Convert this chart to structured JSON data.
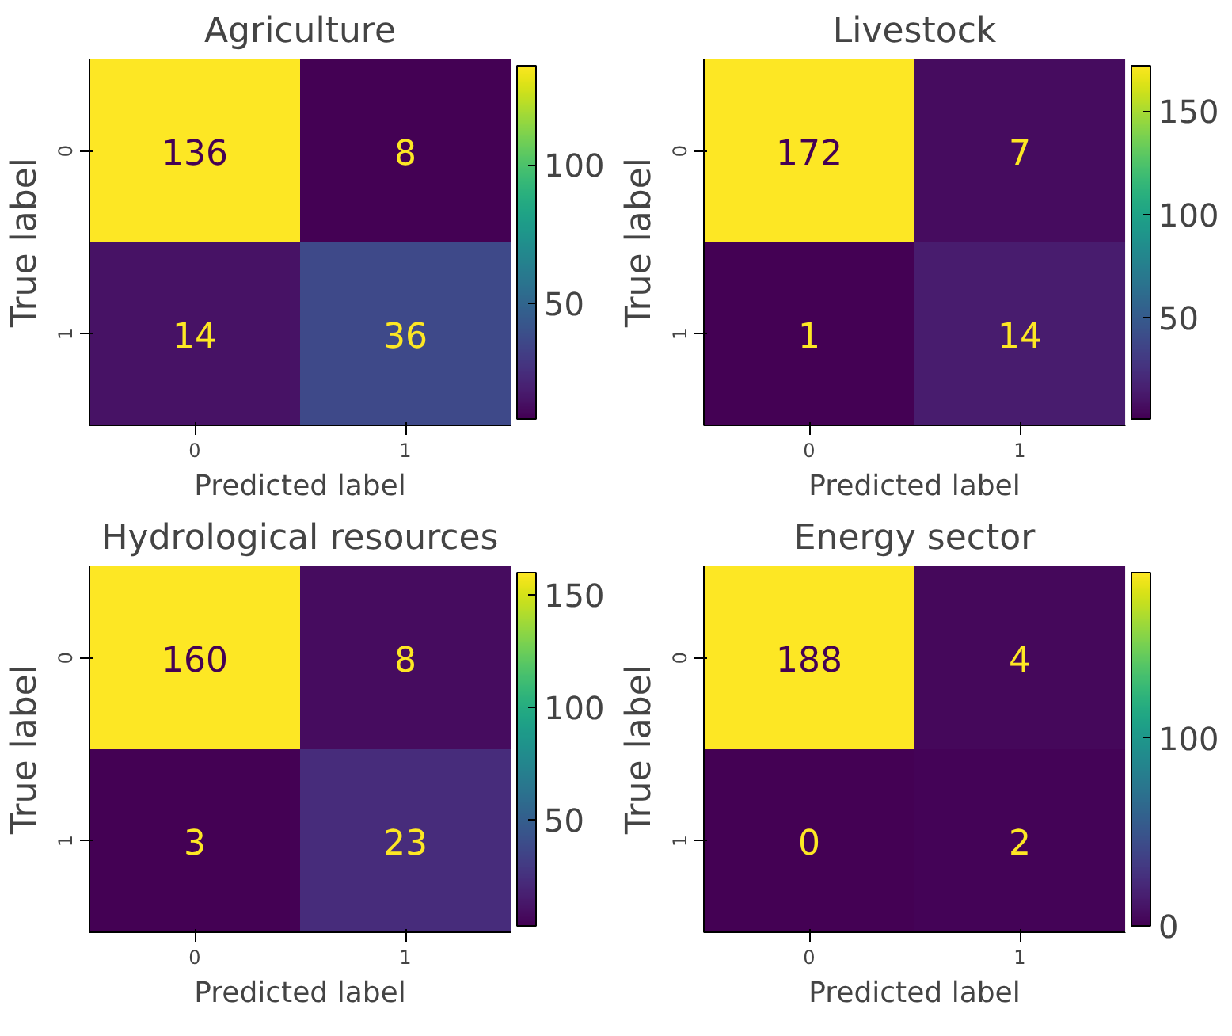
{
  "chart_data": [
    {
      "type": "heatmap",
      "title": "Agriculture",
      "xlabel": "Predicted label",
      "ylabel": "True label",
      "categories": [
        "0",
        "1"
      ],
      "y_categories": [
        "0",
        "1"
      ],
      "cells": [
        [
          136,
          8
        ],
        [
          14,
          36
        ]
      ],
      "clim": [
        8,
        136
      ],
      "cticks": [
        50,
        100
      ],
      "data_labels": true
    },
    {
      "type": "heatmap",
      "title": "Livestock",
      "xlabel": "Predicted label",
      "ylabel": "True label",
      "categories": [
        "0",
        "1"
      ],
      "y_categories": [
        "0",
        "1"
      ],
      "cells": [
        [
          172,
          7
        ],
        [
          1,
          14
        ]
      ],
      "clim": [
        1,
        172
      ],
      "cticks": [
        50,
        100,
        150
      ],
      "data_labels": true
    },
    {
      "type": "heatmap",
      "title": "Hydrological resources",
      "xlabel": "Predicted label",
      "ylabel": "True label",
      "categories": [
        "0",
        "1"
      ],
      "y_categories": [
        "0",
        "1"
      ],
      "cells": [
        [
          160,
          8
        ],
        [
          3,
          23
        ]
      ],
      "clim": [
        3,
        160
      ],
      "cticks": [
        50,
        100,
        150
      ],
      "data_labels": true
    },
    {
      "type": "heatmap",
      "title": "Energy sector",
      "xlabel": "Predicted label",
      "ylabel": "True label",
      "categories": [
        "0",
        "1"
      ],
      "y_categories": [
        "0",
        "1"
      ],
      "cells": [
        [
          188,
          4
        ],
        [
          0,
          2
        ]
      ],
      "clim": [
        0,
        188
      ],
      "cticks": [
        0,
        100
      ],
      "data_labels": true
    }
  ]
}
